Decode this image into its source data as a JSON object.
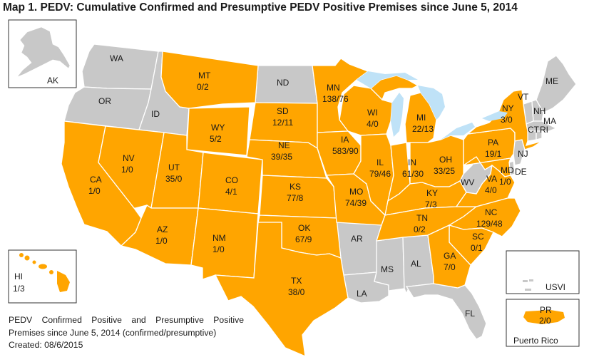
{
  "title": "Map 1.  PEDV:  Cumulative Confirmed and Presumptive PEDV Positive Premises since June 5, 2014",
  "colors": {
    "positive": "#ffa500",
    "none": "#c8c8c8",
    "water": "#bfe2f7"
  },
  "states": {
    "AK": "AK",
    "WA": "WA",
    "OR": "OR",
    "ID": "ID",
    "ND": "ND",
    "AR": "AR",
    "LA": "LA",
    "MS": "MS",
    "AL": "AL",
    "FL": "FL",
    "WV": "WV",
    "ME": "ME",
    "VT": "VT",
    "NH": "NH",
    "MA": "MA",
    "CT": "CT",
    "RI": "RI",
    "NJ": "NJ",
    "DE": "DE",
    "USVI": "USVI",
    "MT": {
      "name": "MT",
      "value": "0/2"
    },
    "MN": {
      "name": "MN",
      "value": "138/76"
    },
    "WI": {
      "name": "WI",
      "value": "4/0"
    },
    "MI": {
      "name": "MI",
      "value": "22/13"
    },
    "NY": {
      "name": "NY",
      "value": "3/0"
    },
    "SD": {
      "name": "SD",
      "value": "12/11"
    },
    "WY": {
      "name": "WY",
      "value": "5/2"
    },
    "NE": {
      "name": "NE",
      "value": "39/35"
    },
    "IA": {
      "name": "IA",
      "value": "583/90"
    },
    "IL": {
      "name": "IL",
      "value": "79/46"
    },
    "IN": {
      "name": "IN",
      "value": "61/30"
    },
    "OH": {
      "name": "OH",
      "value": "33/25"
    },
    "PA": {
      "name": "PA",
      "value": "19/1"
    },
    "NV": {
      "name": "NV",
      "value": "1/0"
    },
    "UT": {
      "name": "UT",
      "value": "35/0"
    },
    "CO": {
      "name": "CO",
      "value": "4/1"
    },
    "KS": {
      "name": "KS",
      "value": "77/8"
    },
    "MO": {
      "name": "MO",
      "value": "74/39"
    },
    "KY": {
      "name": "KY",
      "value": "7/3"
    },
    "VA": {
      "name": "VA",
      "value": "4/0"
    },
    "MD": {
      "name": "MD",
      "value": "1/0"
    },
    "CA": {
      "name": "CA",
      "value": "1/0"
    },
    "AZ": {
      "name": "AZ",
      "value": "1/0"
    },
    "NM": {
      "name": "NM",
      "value": "1/0"
    },
    "OK": {
      "name": "OK",
      "value": "67/9"
    },
    "TN": {
      "name": "TN",
      "value": "0/2"
    },
    "NC": {
      "name": "NC",
      "value": "129/48"
    },
    "SC": {
      "name": "SC",
      "value": "0/1"
    },
    "GA": {
      "name": "GA",
      "value": "7/0"
    },
    "TX": {
      "name": "TX",
      "value": "38/0"
    },
    "HI": {
      "name": "HI",
      "value": "1/3"
    },
    "PR": {
      "name": "PR",
      "value": "2/0"
    }
  },
  "insets": {
    "puerto_rico": "Puerto Rico"
  },
  "legend": {
    "line1_words": [
      "PEDV",
      "Confirmed",
      "Positive",
      "and",
      "Presumptive",
      "Positive"
    ],
    "line2": "Premises since June 5, 2014 (confirmed/presumptive)",
    "created": "Created: 08/6/2015"
  }
}
